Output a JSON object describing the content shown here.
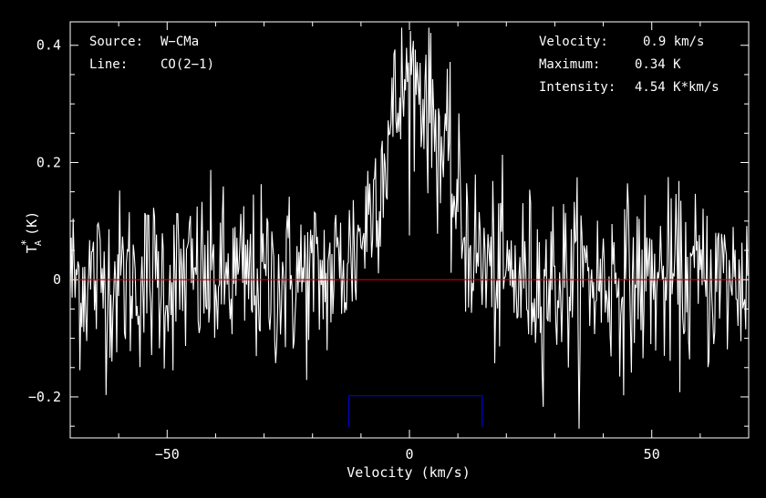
{
  "chart_data": {
    "type": "line",
    "xlabel": "Velocity (km/s)",
    "ylabel": "T",
    "ylabel_sub": "A",
    "ylabel_sup": "*",
    "ylabel_unit": "(K)",
    "xlim": [
      -70,
      70
    ],
    "ylim": [
      -0.27,
      0.44
    ],
    "x_ticks": [
      -50,
      0,
      50
    ],
    "x_tick_labels": [
      "−50",
      "0",
      "50"
    ],
    "y_ticks": [
      -0.2,
      0,
      0.2,
      0.4
    ],
    "y_tick_labels": [
      "−0.2",
      "0",
      "0.2",
      "0.4"
    ],
    "info": [
      {
        "label": "Source:",
        "value": "W−CMa"
      },
      {
        "label": "Line:",
        "value": "CO(2−1)"
      }
    ],
    "stats": [
      {
        "label": "Velocity:",
        "value": "0.9 km/s"
      },
      {
        "label": "Maximum:",
        "value": "0.34 K"
      },
      {
        "label": "Intensity:",
        "value": "4.54 K*km/s"
      }
    ],
    "baseline": 0,
    "window": [
      -12.5,
      15
    ],
    "line": {
      "center": 0.9,
      "peak": 0.34,
      "sigma": 6.3
    },
    "noise_rms": 0.075,
    "channel_width_kms": 0.2,
    "colors": {
      "spectrum": "#ffffff",
      "baseline": "#cc0000",
      "window": "#0000cc",
      "frame": "#ffffff",
      "background": "#000000"
    }
  }
}
